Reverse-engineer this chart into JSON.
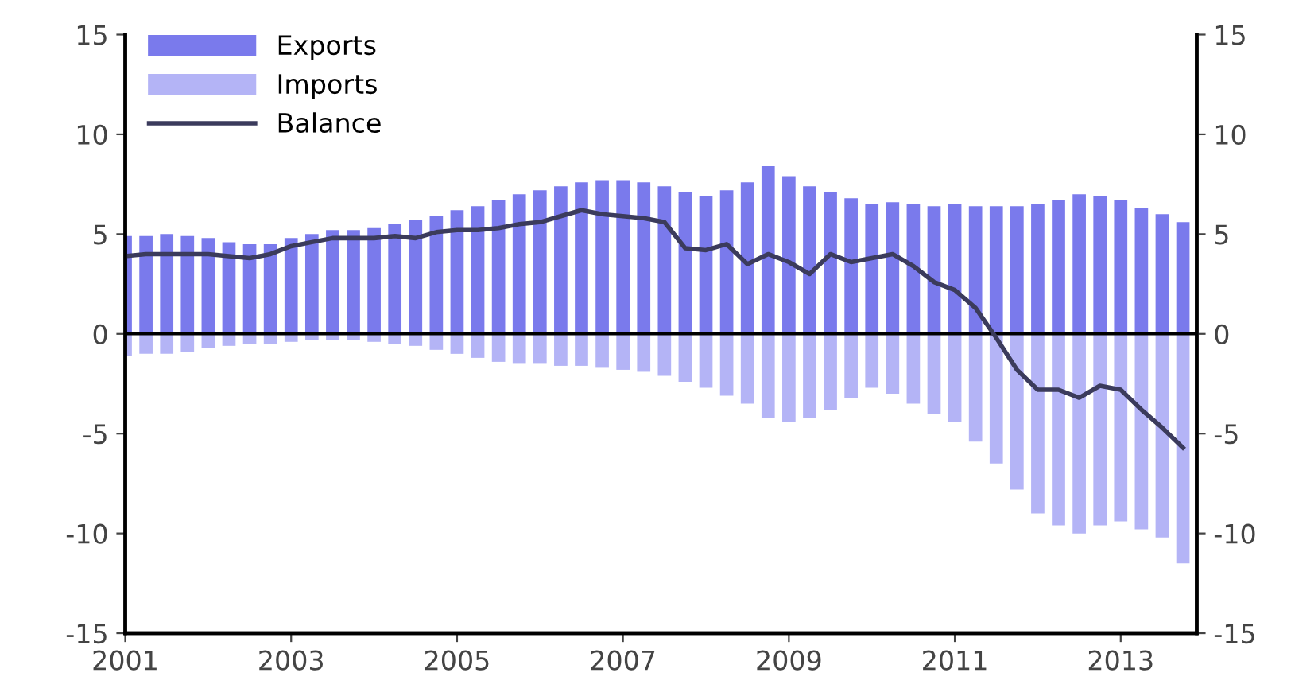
{
  "chart_data": {
    "type": "bar",
    "x": [
      "2001-01",
      "2001-04",
      "2001-07",
      "2001-10",
      "2002-01",
      "2002-04",
      "2002-07",
      "2002-10",
      "2003-01",
      "2003-04",
      "2003-07",
      "2003-10",
      "2004-01",
      "2004-04",
      "2004-07",
      "2004-10",
      "2005-01",
      "2005-04",
      "2005-07",
      "2005-10",
      "2006-01",
      "2006-04",
      "2006-07",
      "2006-10",
      "2007-01",
      "2007-04",
      "2007-07",
      "2007-10",
      "2008-01",
      "2008-04",
      "2008-07",
      "2008-10",
      "2009-01",
      "2009-04",
      "2009-07",
      "2009-10",
      "2010-01",
      "2010-04",
      "2010-07",
      "2010-10",
      "2011-01",
      "2011-04",
      "2011-07",
      "2011-10",
      "2012-01",
      "2012-04",
      "2012-07",
      "2012-10",
      "2013-01",
      "2013-04",
      "2013-07",
      "2013-10"
    ],
    "series": [
      {
        "name": "Exports",
        "color": "#7a7aec",
        "values": [
          4.9,
          4.9,
          5.0,
          4.9,
          4.8,
          4.6,
          4.5,
          4.5,
          4.8,
          5.0,
          5.2,
          5.2,
          5.3,
          5.5,
          5.7,
          5.9,
          6.2,
          6.4,
          6.7,
          7.0,
          7.2,
          7.4,
          7.6,
          7.7,
          7.7,
          7.6,
          7.4,
          7.1,
          6.9,
          7.2,
          7.6,
          8.4,
          7.9,
          7.4,
          7.1,
          6.8,
          6.5,
          6.6,
          6.5,
          6.4,
          6.5,
          6.4,
          6.4,
          6.4,
          6.5,
          6.7,
          7.0,
          6.9,
          6.7,
          6.3,
          6.0,
          5.6
        ]
      },
      {
        "name": "Imports",
        "color": "#b4b4f6",
        "values": [
          -1.1,
          -1.0,
          -1.0,
          -0.9,
          -0.7,
          -0.6,
          -0.5,
          -0.5,
          -0.4,
          -0.3,
          -0.3,
          -0.3,
          -0.4,
          -0.5,
          -0.6,
          -0.8,
          -1.0,
          -1.2,
          -1.4,
          -1.5,
          -1.5,
          -1.6,
          -1.6,
          -1.7,
          -1.8,
          -1.9,
          -2.1,
          -2.4,
          -2.7,
          -3.1,
          -3.5,
          -4.2,
          -4.4,
          -4.2,
          -3.8,
          -3.2,
          -2.7,
          -3.0,
          -3.5,
          -4.0,
          -4.4,
          -5.4,
          -6.5,
          -7.8,
          -9.0,
          -9.6,
          -10.0,
          -9.6,
          -9.4,
          -9.8,
          -10.2,
          -11.5
        ]
      },
      {
        "name": "Balance",
        "type": "line",
        "color": "#3b3b5c",
        "values": [
          3.9,
          4.0,
          4.0,
          4.0,
          4.0,
          3.9,
          3.8,
          4.0,
          4.4,
          4.6,
          4.8,
          4.8,
          4.8,
          4.9,
          4.8,
          5.1,
          5.2,
          5.2,
          5.3,
          5.5,
          5.6,
          5.9,
          6.2,
          6.0,
          5.9,
          5.8,
          5.6,
          4.3,
          4.2,
          4.5,
          3.5,
          4.0,
          3.6,
          3.0,
          4.0,
          3.6,
          3.8,
          4.0,
          3.4,
          2.6,
          2.2,
          1.3,
          -0.2,
          -1.8,
          -2.8,
          -2.8,
          -3.2,
          -2.6,
          -2.8,
          -3.8,
          -4.7,
          -5.7
        ]
      }
    ],
    "xlim": [
      "2001-01",
      "2013-12"
    ],
    "xticks": [
      "2001",
      "2003",
      "2005",
      "2007",
      "2009",
      "2011",
      "2013"
    ],
    "ylim": [
      -15,
      15
    ],
    "yticks": [
      -15,
      -10,
      -5,
      0,
      5,
      10,
      15
    ],
    "y2lim": [
      -15,
      15
    ],
    "y2ticks": [
      -15,
      -10,
      -5,
      0,
      5,
      10,
      15
    ],
    "ref_lines": [
      {
        "axis": "y",
        "value": 0,
        "color": "#000000"
      }
    ],
    "stacked": true,
    "grid": false,
    "legend": "top left",
    "marker": "none",
    "line_style": "solid"
  }
}
